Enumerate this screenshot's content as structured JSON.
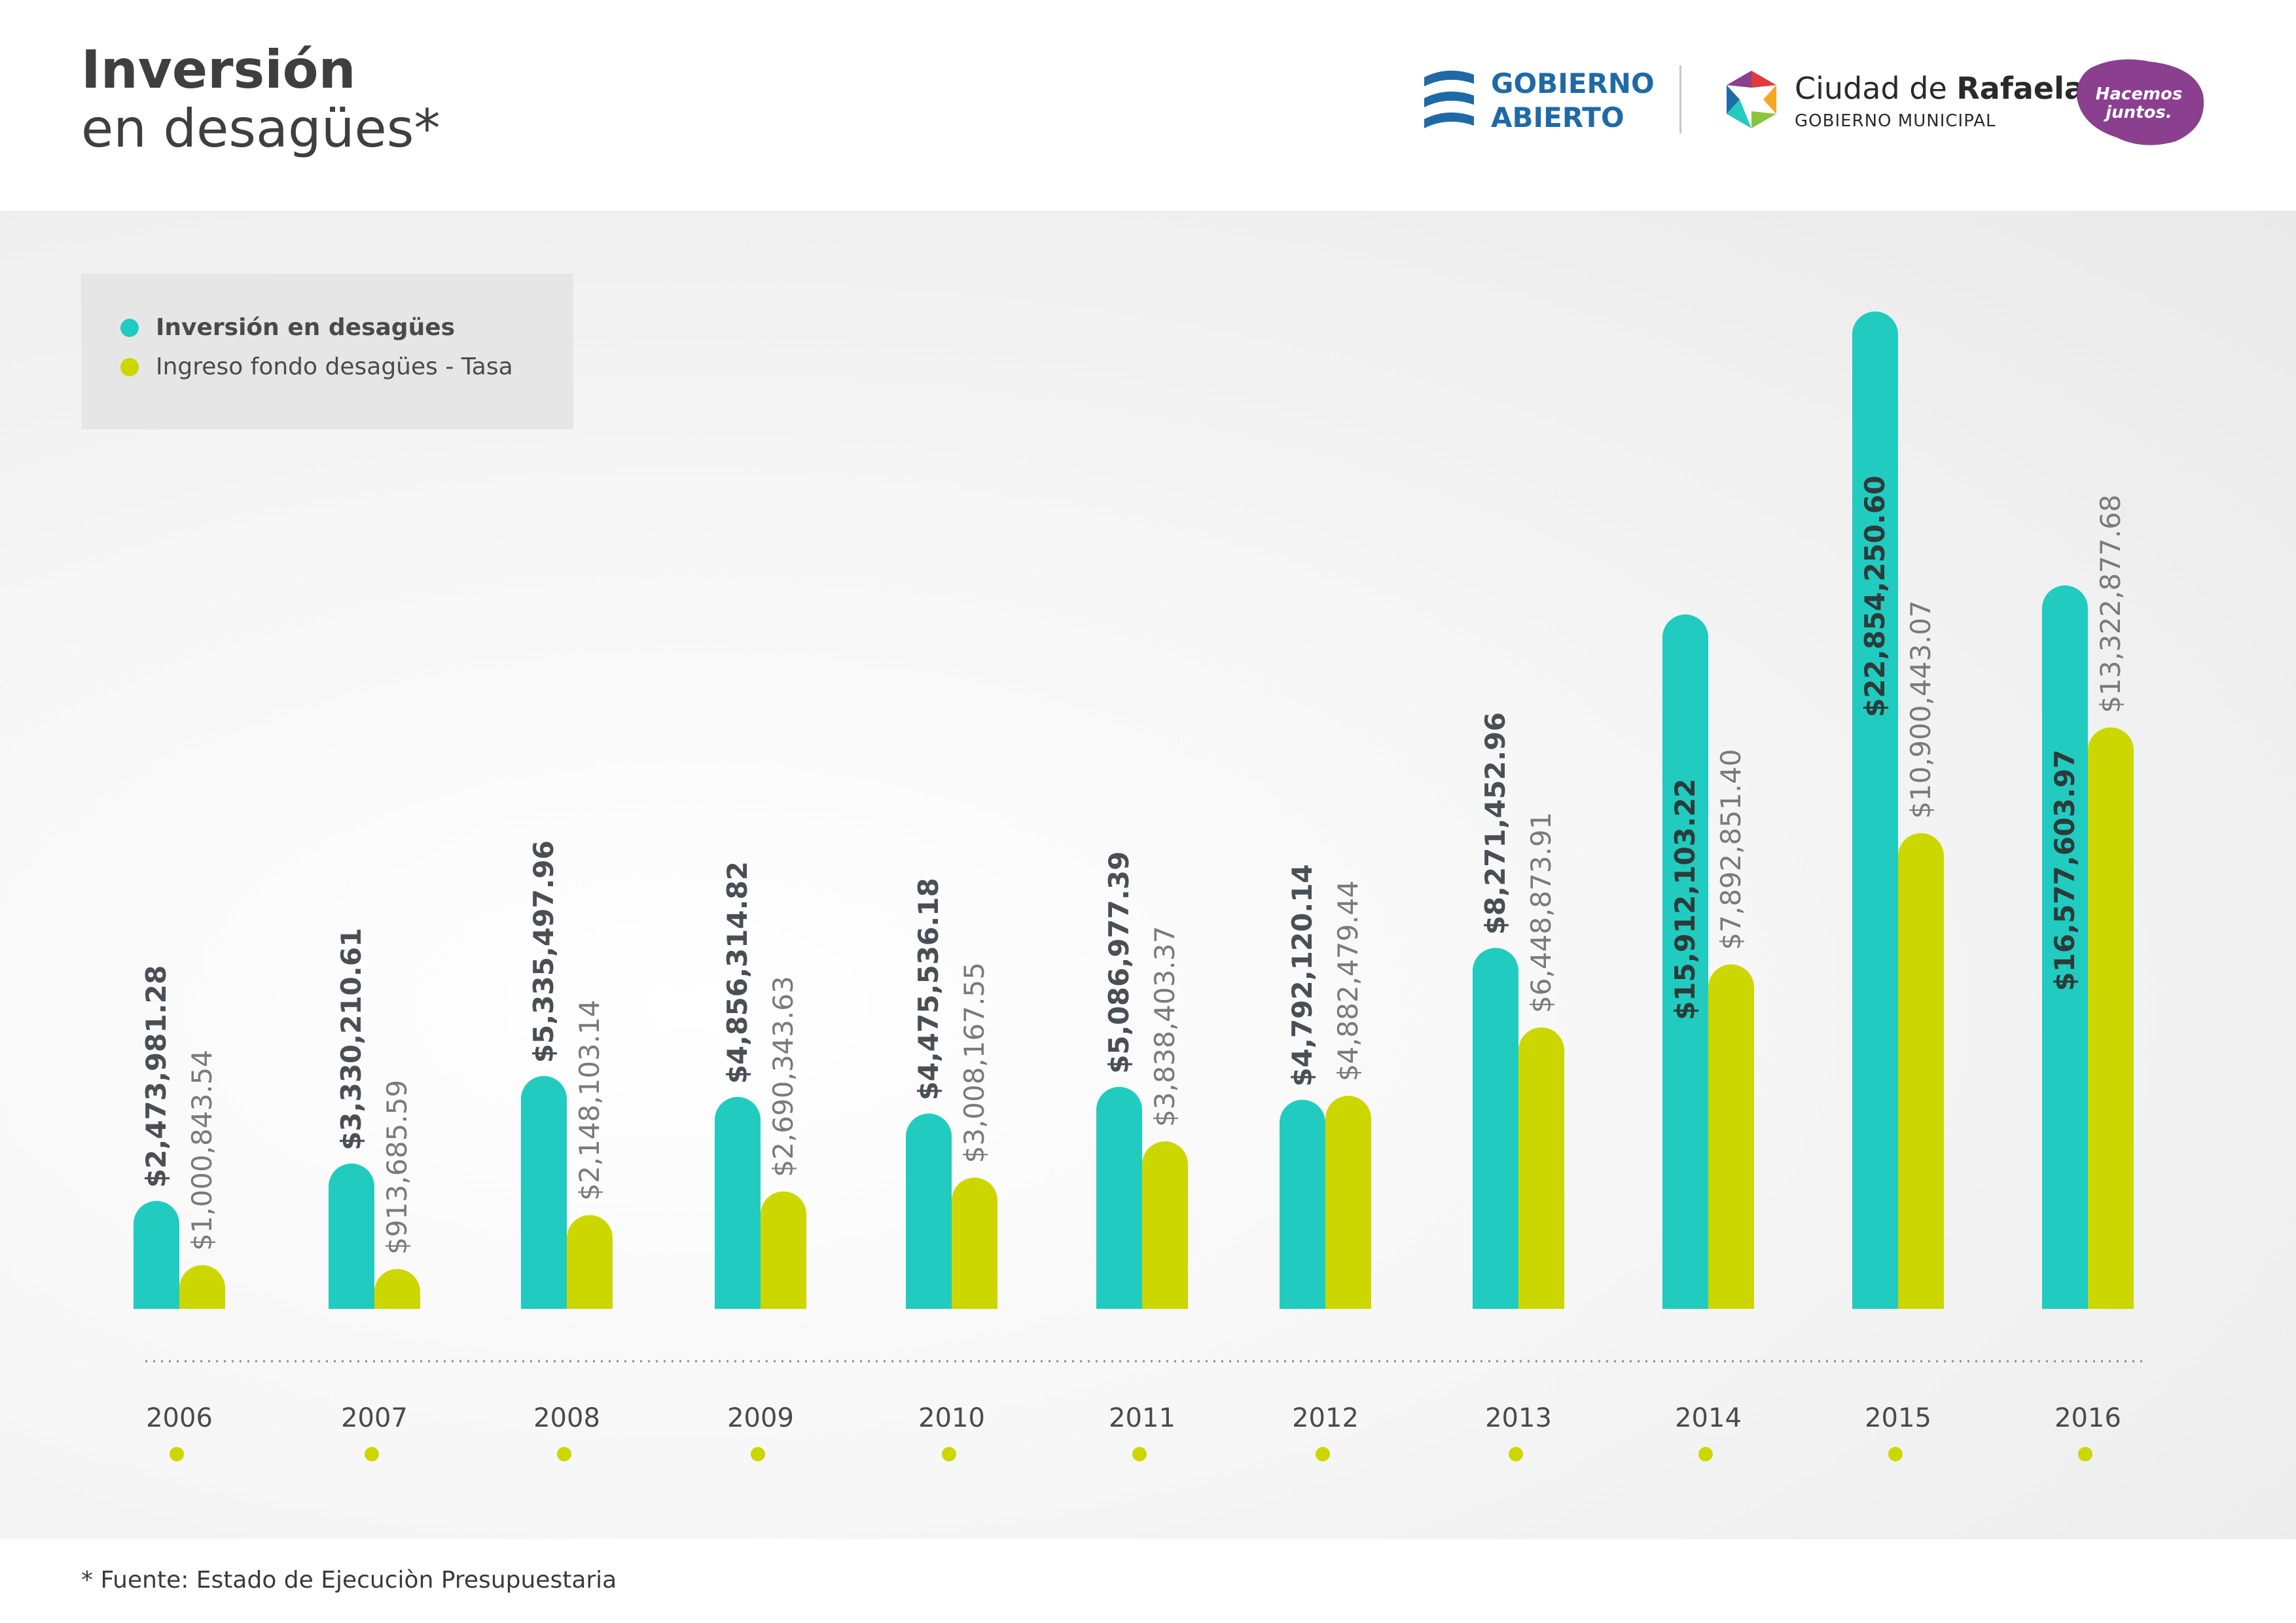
{
  "header": {
    "title_line1": "Inversión",
    "title_line2": "en desagües*",
    "logo_gobierno_abierto_line1": "GOBIERNO",
    "logo_gobierno_abierto_line2": "ABIERTO",
    "logo_ciudad_prefix": "Ciudad de ",
    "logo_ciudad_name": "Rafaela",
    "logo_ciudad_sub": "GOBIERNO MUNICIPAL",
    "logo_hacemos_line1": "Hacemos",
    "logo_hacemos_line2": "juntos."
  },
  "colors": {
    "series1": "#21cbbf",
    "series2": "#ccd600",
    "title": "#3f3f3f",
    "logo_blue": "#1f6aa6",
    "logo_purple": "#8b3f8f"
  },
  "chart_data": {
    "type": "bar",
    "categories": [
      "2006",
      "2007",
      "2008",
      "2009",
      "2010",
      "2011",
      "2012",
      "2013",
      "2014",
      "2015",
      "2016"
    ],
    "series": [
      {
        "name": "Inversión en desagües",
        "values": [
          2473981.28,
          3330210.61,
          5335497.96,
          4856314.82,
          4475536.18,
          5086977.39,
          4792120.14,
          8271452.96,
          15912103.22,
          22854250.6,
          16577603.97
        ],
        "labels": [
          "$2,473,981.28",
          "$3,330,210.61",
          "$5,335,497.96",
          "$4,856,314.82",
          "$4,475,536.18",
          "$5,086,977.39",
          "$4,792,120.14",
          "$8,271,452.96",
          "$15,912,103.22",
          "$22,854,250.60",
          "$16,577,603.97"
        ]
      },
      {
        "name": "Ingreso fondo desagües - Tasa",
        "values": [
          1000843.54,
          913685.59,
          2148103.14,
          2690343.63,
          3008167.55,
          3838403.37,
          4882479.44,
          6448873.91,
          7892851.4,
          10900443.07,
          13322877.68
        ],
        "labels": [
          "$1,000,843.54",
          "$913,685.59",
          "$2,148,103.14",
          "$2,690,343.63",
          "$3,008,167.55",
          "$3,838,403.37",
          "$4,882,479.44",
          "$6,448,873.91",
          "$7,892,851.40",
          "$10,900,443.07",
          "$13,322,877.68"
        ]
      }
    ],
    "legend": [
      "Inversión en desagües",
      "Ingreso fondo desagües - Tasa"
    ],
    "legend_position": "top-left",
    "grid": false
  },
  "footnote": "* Fuente: Estado de Ejecuciòn Presupuestaria"
}
